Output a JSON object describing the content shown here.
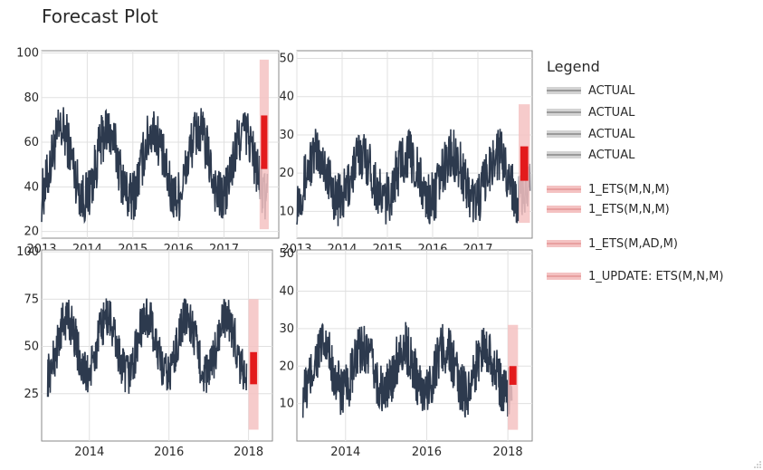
{
  "header": {
    "title": "Forecast Plot"
  },
  "colors": {
    "actual": "#2d3a4e",
    "forecast": "#e31a1c",
    "band": "#f4c2c2",
    "band_grey": "#d3d3d3"
  },
  "legend": {
    "title": "Legend",
    "items": [
      {
        "label": "ACTUAL",
        "kind": "actual"
      },
      {
        "label": "ACTUAL",
        "kind": "actual"
      },
      {
        "label": "ACTUAL",
        "kind": "actual"
      },
      {
        "label": "ACTUAL",
        "kind": "actual"
      },
      {
        "label": "1_ETS(M,N,M)",
        "kind": "forecast"
      },
      {
        "label": "1_ETS(M,N,M)",
        "kind": "forecast"
      },
      {
        "label": "1_ETS(M,AD,M)",
        "kind": "forecast"
      },
      {
        "label": "1_UPDATE: ETS(M,N,M)",
        "kind": "forecast"
      }
    ]
  },
  "chart_data": [
    {
      "type": "line",
      "xlim": [
        2013,
        2018.2
      ],
      "ylim": [
        17,
        101
      ],
      "xticks": [
        2013,
        2014,
        2015,
        2016,
        2017
      ],
      "xticklabels": [
        "2013",
        "2014",
        "2015",
        "2016",
        "2017"
      ],
      "yticks": [
        20,
        40,
        60,
        80,
        100
      ],
      "yticklabels": [
        "20",
        "40",
        "60",
        "80",
        "100"
      ],
      "series": [
        {
          "kind": "actual",
          "x_start": 2013,
          "x_end": 2017.95,
          "base_mean": 50,
          "seasonal_amp": 15,
          "noise": 12,
          "min": 18,
          "max": 95
        },
        {
          "kind": "forecast",
          "x_start": 2017.78,
          "x_end": 2017.98,
          "lower": 48,
          "upper": 72,
          "band_lower": 21,
          "band_upper": 97
        }
      ]
    },
    {
      "type": "line",
      "xlim": [
        2013,
        2018.2
      ],
      "ylim": [
        3,
        52
      ],
      "xticks": [
        2013,
        2014,
        2015,
        2016,
        2017
      ],
      "xticklabels": [
        "2013",
        "2014",
        "2015",
        "2016",
        "2017"
      ],
      "yticks": [
        10,
        20,
        30,
        40,
        50
      ],
      "yticklabels": [
        "10",
        "20",
        "30",
        "40",
        "50"
      ],
      "series": [
        {
          "kind": "actual",
          "x_start": 2013,
          "x_end": 2018.15,
          "base_mean": 19,
          "seasonal_amp": 6,
          "noise": 7,
          "min": 5,
          "max": 49
        },
        {
          "kind": "forecast",
          "x_start": 2017.9,
          "x_end": 2018.15,
          "lower": 18,
          "upper": 27,
          "band_lower": 7,
          "band_upper": 38
        }
      ]
    },
    {
      "type": "line",
      "xlim": [
        2012.8,
        2018.6
      ],
      "ylim": [
        0,
        101
      ],
      "xticks": [
        2014,
        2016,
        2018
      ],
      "xticklabels": [
        "2014",
        "2016",
        "2018"
      ],
      "yticks": [
        25,
        50,
        75,
        100
      ],
      "yticklabels": [
        "25",
        "50",
        "75",
        "100"
      ],
      "series": [
        {
          "kind": "actual",
          "x_start": 2012.95,
          "x_end": 2017.95,
          "base_mean": 50,
          "seasonal_amp": 15,
          "noise": 12,
          "min": 18,
          "max": 95
        },
        {
          "kind": "forecast",
          "x_start": 2018.0,
          "x_end": 2018.25,
          "lower": 30,
          "upper": 47,
          "band_lower": 6,
          "band_upper": 75
        }
      ]
    },
    {
      "type": "line",
      "xlim": [
        2012.8,
        2018.6
      ],
      "ylim": [
        0,
        51
      ],
      "xticks": [
        2014,
        2016,
        2018
      ],
      "xticklabels": [
        "2014",
        "2016",
        "2018"
      ],
      "yticks": [
        10,
        20,
        30,
        40,
        50
      ],
      "yticklabels": [
        "10",
        "20",
        "30",
        "40",
        "50"
      ],
      "series": [
        {
          "kind": "actual",
          "x_start": 2012.95,
          "x_end": 2018.1,
          "base_mean": 19,
          "seasonal_amp": 6,
          "noise": 7,
          "min": 5,
          "max": 49
        },
        {
          "kind": "forecast",
          "x_start": 2018.0,
          "x_end": 2018.25,
          "lower": 15,
          "upper": 20,
          "band_lower": 3,
          "band_upper": 31
        }
      ]
    }
  ]
}
